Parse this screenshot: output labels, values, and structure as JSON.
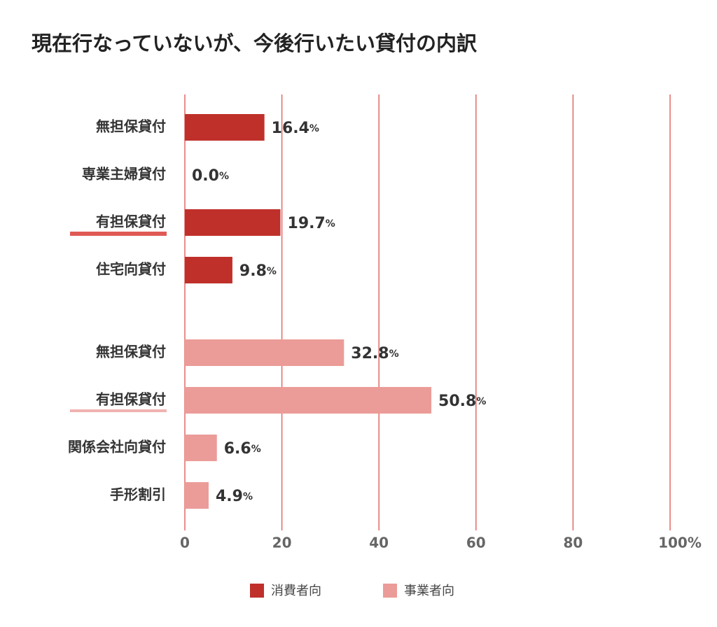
{
  "chart_data": {
    "type": "bar",
    "orientation": "horizontal",
    "title": "現在行なっていないが、今後行いたい貸付の内訳",
    "series": [
      {
        "name": "消費者向",
        "color": "#c0302a",
        "categories": [
          "無担保貸付",
          "専業主婦貸付",
          "有担保貸付",
          "住宅向貸付"
        ],
        "values": [
          16.4,
          0,
          19.7,
          9.8
        ],
        "value_labels": [
          "16.4%",
          "0.0%",
          "19.7%",
          "9.8%"
        ]
      },
      {
        "name": "事業者向",
        "color": "#eb9c98",
        "categories": [
          "無担保貸付",
          "有担保貸付",
          "関係会社向貸付",
          "手形割引"
        ],
        "values": [
          32.8,
          50.8,
          6.6,
          4.9
        ],
        "value_labels": [
          "32.8%",
          "50.8%",
          "6.6%",
          "4.9%"
        ]
      }
    ],
    "xlim": [
      0,
      100
    ],
    "xticks": [
      0,
      20,
      40,
      60,
      80,
      {
        "value": 100,
        "label": "100%"
      }
    ],
    "grid": true,
    "legend": "bottom"
  }
}
